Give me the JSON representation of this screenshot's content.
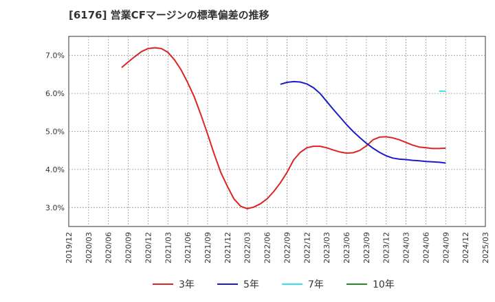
{
  "chart_data": {
    "type": "line",
    "title": "[6176]  営業CFマージンの標準偏差の推移",
    "x_labels": [
      "2019/12",
      "2020/03",
      "2020/06",
      "2020/09",
      "2020/12",
      "2021/03",
      "2021/06",
      "2021/09",
      "2021/12",
      "2022/03",
      "2022/06",
      "2022/09",
      "2022/12",
      "2023/03",
      "2023/06",
      "2023/09",
      "2023/12",
      "2024/03",
      "2024/06",
      "2024/09",
      "2024/12",
      "2025/03"
    ],
    "y_ticks": [
      "3.0%",
      "4.0%",
      "5.0%",
      "6.0%",
      "7.0%"
    ],
    "ylim": [
      2.5,
      7.5
    ],
    "grid": true,
    "legend_position": "bottom",
    "series": [
      {
        "name": "3年",
        "color": "#dd2222",
        "points": [
          [
            "2020/08",
            6.68
          ],
          [
            "2020/09",
            6.83
          ],
          [
            "2020/10",
            6.97
          ],
          [
            "2020/11",
            7.1
          ],
          [
            "2020/12",
            7.18
          ],
          [
            "2021/01",
            7.2
          ],
          [
            "2021/02",
            7.18
          ],
          [
            "2021/03",
            7.08
          ],
          [
            "2021/04",
            6.88
          ],
          [
            "2021/05",
            6.62
          ],
          [
            "2021/06",
            6.28
          ],
          [
            "2021/07",
            5.9
          ],
          [
            "2021/08",
            5.43
          ],
          [
            "2021/09",
            4.93
          ],
          [
            "2021/10",
            4.4
          ],
          [
            "2021/11",
            3.92
          ],
          [
            "2021/12",
            3.55
          ],
          [
            "2022/01",
            3.22
          ],
          [
            "2022/02",
            3.03
          ],
          [
            "2022/03",
            2.97
          ],
          [
            "2022/04",
            3.01
          ],
          [
            "2022/05",
            3.1
          ],
          [
            "2022/06",
            3.23
          ],
          [
            "2022/07",
            3.42
          ],
          [
            "2022/08",
            3.65
          ],
          [
            "2022/09",
            3.92
          ],
          [
            "2022/10",
            4.25
          ],
          [
            "2022/11",
            4.45
          ],
          [
            "2022/12",
            4.57
          ],
          [
            "2023/01",
            4.61
          ],
          [
            "2023/02",
            4.61
          ],
          [
            "2023/03",
            4.57
          ],
          [
            "2023/04",
            4.51
          ],
          [
            "2023/05",
            4.46
          ],
          [
            "2023/06",
            4.43
          ],
          [
            "2023/07",
            4.44
          ],
          [
            "2023/08",
            4.5
          ],
          [
            "2023/09",
            4.62
          ],
          [
            "2023/10",
            4.78
          ],
          [
            "2023/11",
            4.85
          ],
          [
            "2023/12",
            4.86
          ],
          [
            "2024/01",
            4.83
          ],
          [
            "2024/02",
            4.78
          ],
          [
            "2024/03",
            4.71
          ],
          [
            "2024/04",
            4.64
          ],
          [
            "2024/05",
            4.59
          ],
          [
            "2024/06",
            4.57
          ],
          [
            "2024/07",
            4.55
          ],
          [
            "2024/08",
            4.55
          ],
          [
            "2024/09",
            4.56
          ]
        ]
      },
      {
        "name": "5年",
        "color": "#1a1acc",
        "points": [
          [
            "2022/08",
            6.24
          ],
          [
            "2022/09",
            6.29
          ],
          [
            "2022/10",
            6.31
          ],
          [
            "2022/11",
            6.3
          ],
          [
            "2022/12",
            6.25
          ],
          [
            "2023/01",
            6.15
          ],
          [
            "2023/02",
            6.0
          ],
          [
            "2023/03",
            5.79
          ],
          [
            "2023/04",
            5.58
          ],
          [
            "2023/05",
            5.38
          ],
          [
            "2023/06",
            5.18
          ],
          [
            "2023/07",
            5.0
          ],
          [
            "2023/08",
            4.84
          ],
          [
            "2023/09",
            4.69
          ],
          [
            "2023/10",
            4.56
          ],
          [
            "2023/11",
            4.45
          ],
          [
            "2023/12",
            4.36
          ],
          [
            "2024/01",
            4.3
          ],
          [
            "2024/02",
            4.27
          ],
          [
            "2024/03",
            4.26
          ],
          [
            "2024/04",
            4.24
          ],
          [
            "2024/05",
            4.23
          ],
          [
            "2024/06",
            4.21
          ],
          [
            "2024/07",
            4.2
          ],
          [
            "2024/08",
            4.19
          ],
          [
            "2024/09",
            4.17
          ]
        ]
      },
      {
        "name": "7年",
        "color": "#33e0ee",
        "points": [
          [
            "2024/08",
            6.06
          ],
          [
            "2024/09",
            6.06
          ]
        ]
      },
      {
        "name": "10年",
        "color": "#228822",
        "points": []
      }
    ]
  }
}
